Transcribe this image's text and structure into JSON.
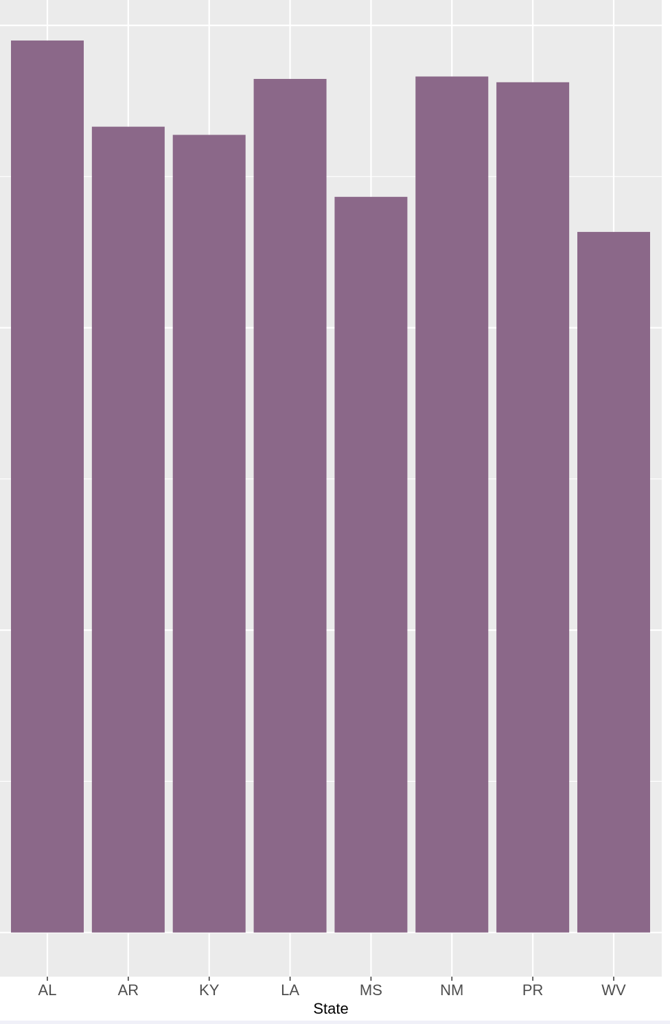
{
  "chart_data": {
    "type": "bar",
    "categories": [
      "AL",
      "AR",
      "KY",
      "LA",
      "MS",
      "NM",
      "PR",
      "WV"
    ],
    "values": [
      0.295,
      0.2665,
      0.2638,
      0.2823,
      0.2433,
      0.2831,
      0.2812,
      0.2317
    ],
    "title": "",
    "xlabel": "State",
    "ylabel": "",
    "ylim": [
      -0.0146,
      0.3084
    ],
    "grid": true,
    "legend": "none",
    "bar_color": "#8b6889",
    "panel_color": "#ebebeb",
    "grid_color": "#ffffff"
  }
}
